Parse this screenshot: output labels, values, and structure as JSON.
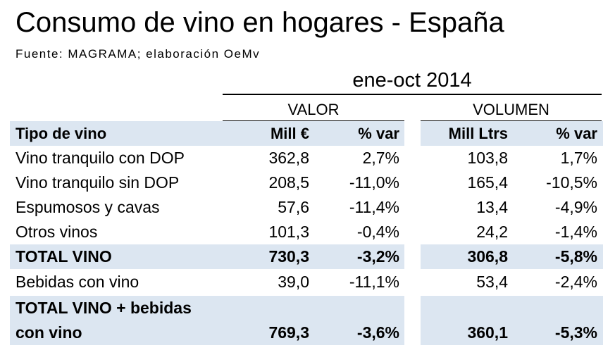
{
  "title": "Consumo de vino en hogares - España",
  "source": "Fuente: MAGRAMA; elaboración OeMv",
  "period": "ene-oct 2014",
  "groups": {
    "valor": "VALOR",
    "volumen": "VOLUMEN"
  },
  "header": {
    "tipo": "Tipo de vino",
    "mill_eur": "Mill €",
    "var_valor": "% var",
    "mill_ltrs": "Mill Ltrs",
    "var_volumen": "% var"
  },
  "rows": [
    {
      "tipo": "Vino tranquilo con DOP",
      "mill_eur": "362,8",
      "var_valor": "2,7%",
      "mill_ltrs": "103,8",
      "var_volumen": "1,7%"
    },
    {
      "tipo": "Vino tranquilo sin DOP",
      "mill_eur": "208,5",
      "var_valor": "-11,0%",
      "mill_ltrs": "165,4",
      "var_volumen": "-10,5%"
    },
    {
      "tipo": "Espumosos y cavas",
      "mill_eur": "57,6",
      "var_valor": "-11,4%",
      "mill_ltrs": "13,4",
      "var_volumen": "-4,9%"
    },
    {
      "tipo": "Otros vinos",
      "mill_eur": "101,3",
      "var_valor": "-0,4%",
      "mill_ltrs": "24,2",
      "var_volumen": "-1,4%"
    },
    {
      "tipo": "TOTAL VINO",
      "mill_eur": "730,3",
      "var_valor": "-3,2%",
      "mill_ltrs": "306,8",
      "var_volumen": "-5,8%"
    },
    {
      "tipo": "Bebidas con vino",
      "mill_eur": "39,0",
      "var_valor": "-11,1%",
      "mill_ltrs": "53,4",
      "var_volumen": "-2,4%"
    }
  ],
  "grand_total": {
    "tipo_line1": "TOTAL VINO + bebidas",
    "tipo_line2": "con vino",
    "mill_eur": "769,3",
    "var_valor": "-3,6%",
    "mill_ltrs": "360,1",
    "var_volumen": "-5,3%"
  },
  "colors": {
    "band": "#dce6f1",
    "text": "#000000"
  }
}
